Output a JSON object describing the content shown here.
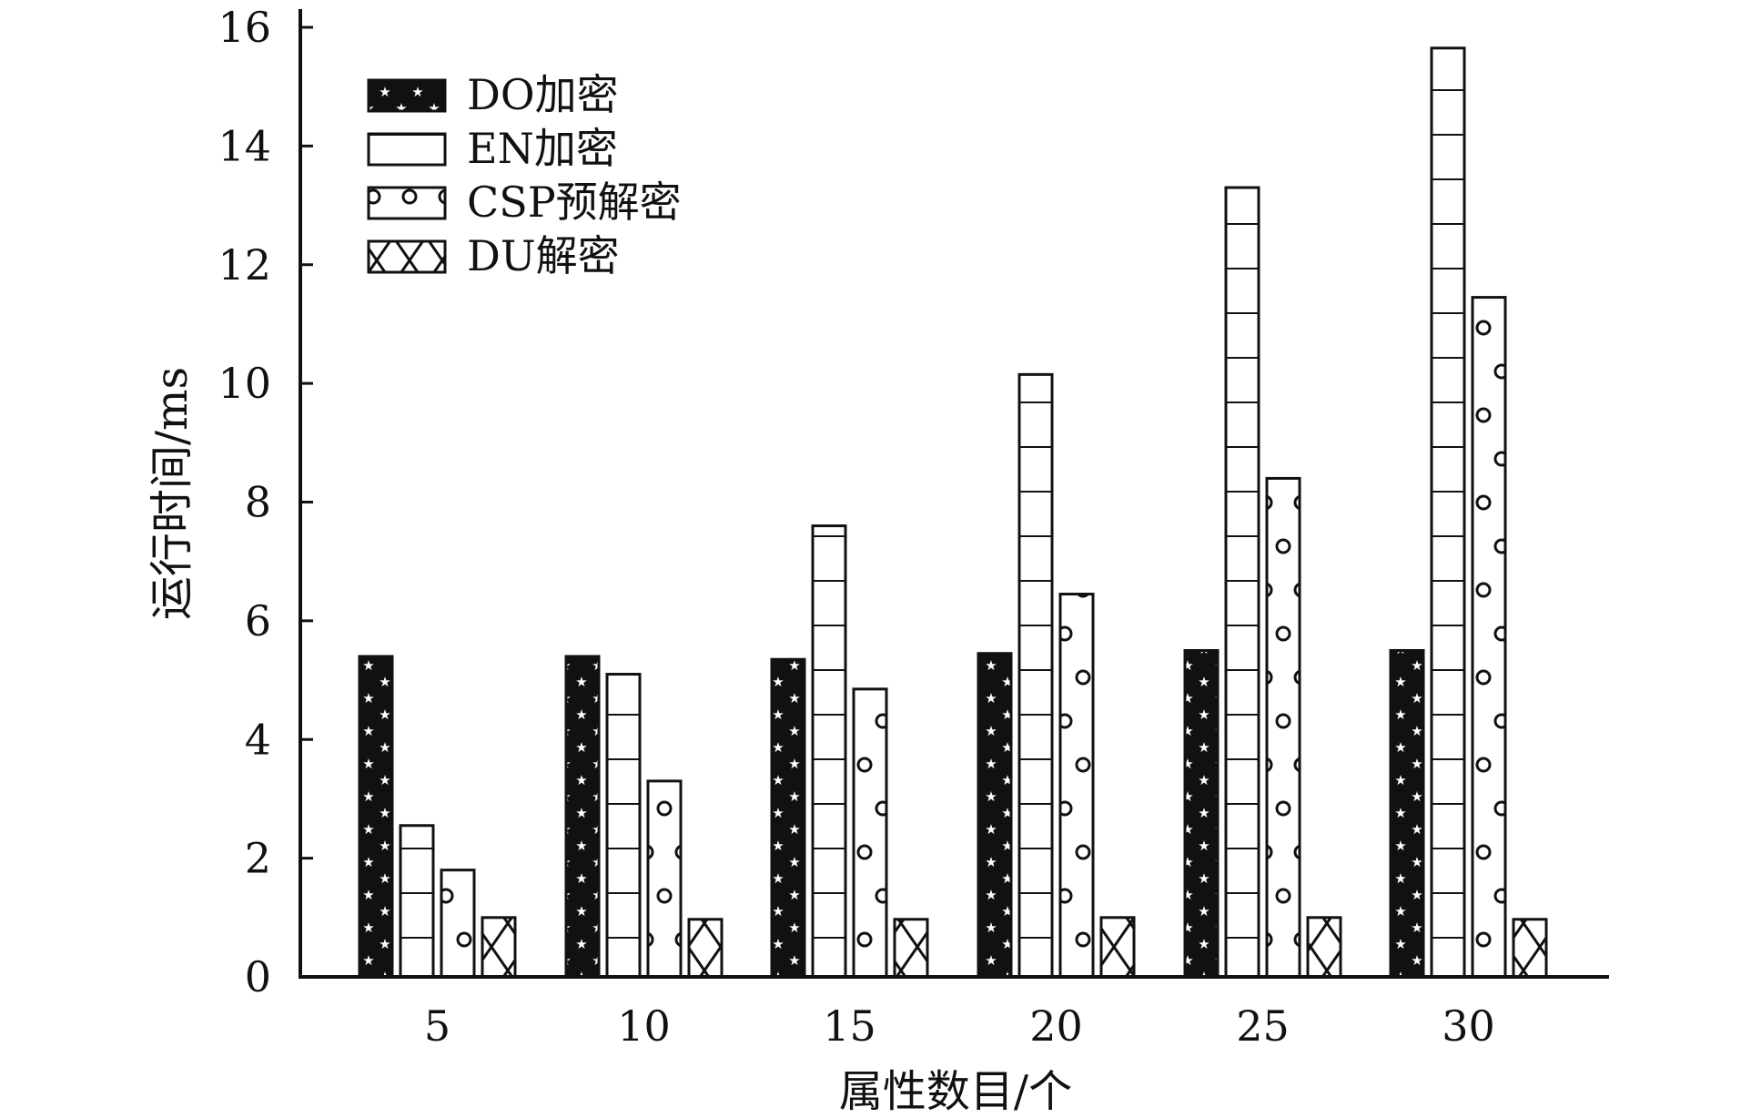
{
  "chart_data": {
    "type": "bar",
    "title": "",
    "xlabel": "属性数目/个",
    "ylabel": "运行时间/ms",
    "categories": [
      "5",
      "10",
      "15",
      "20",
      "25",
      "30"
    ],
    "ylim": [
      0,
      16
    ],
    "yticks": [
      0,
      2,
      4,
      6,
      8,
      10,
      12,
      14,
      16
    ],
    "grid": false,
    "legend_position": "top-left",
    "series": [
      {
        "name": "DO加密",
        "pattern": "stars",
        "values": [
          5.4,
          5.4,
          5.35,
          5.45,
          5.5,
          5.5
        ]
      },
      {
        "name": "EN加密",
        "pattern": "horizontal-lines",
        "values": [
          2.55,
          5.1,
          7.6,
          10.15,
          13.3,
          15.65
        ]
      },
      {
        "name": "CSP预解密",
        "pattern": "circles",
        "values": [
          1.8,
          3.3,
          4.85,
          6.45,
          8.4,
          11.45
        ]
      },
      {
        "name": "DU解密",
        "pattern": "cross",
        "values": [
          1.0,
          0.97,
          0.97,
          1.0,
          1.0,
          0.97
        ]
      }
    ]
  }
}
